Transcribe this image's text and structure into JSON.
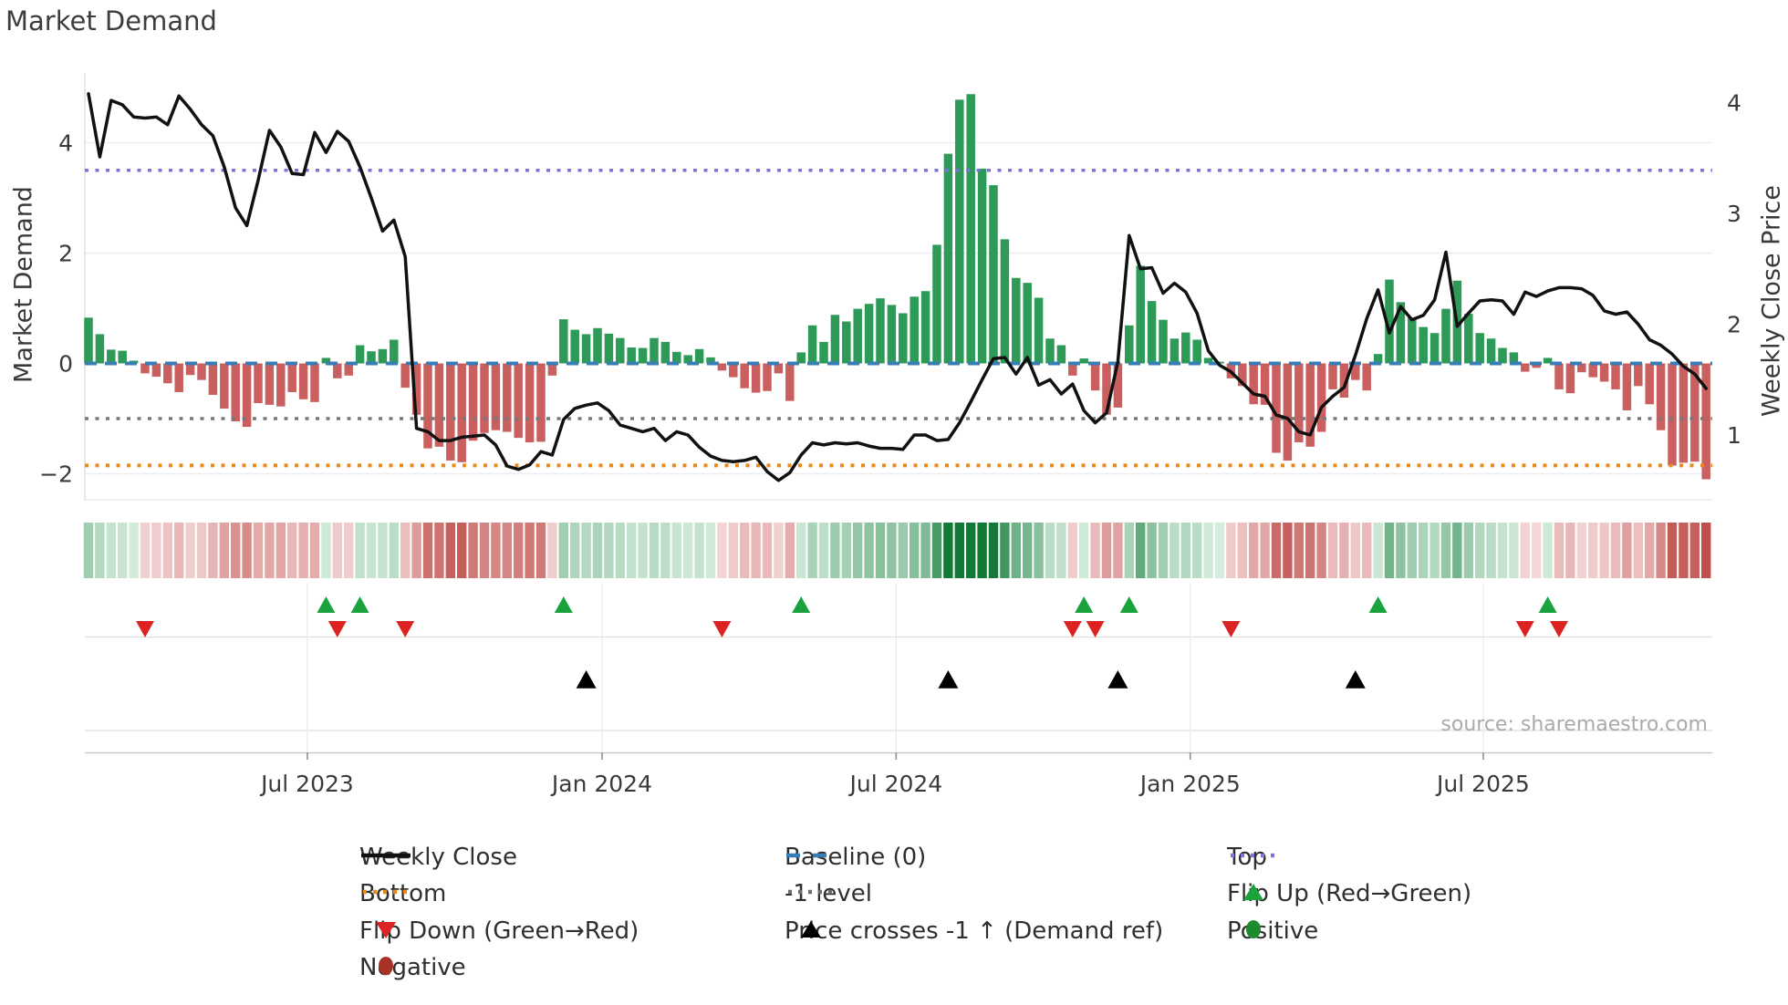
{
  "title": "Market Demand",
  "source_note": "source: sharemaestro.com",
  "axes": {
    "left_label": "Market Demand",
    "right_label": "Weekly Close Price",
    "left_ticks": [
      {
        "label": "4",
        "value": 4
      },
      {
        "label": "2",
        "value": 2
      },
      {
        "label": "0",
        "value": 0
      },
      {
        "label": "−2",
        "value": -2
      }
    ],
    "right_ticks": [
      {
        "label": "4",
        "value": 4
      },
      {
        "label": "3",
        "value": 3
      },
      {
        "label": "2",
        "value": 2
      },
      {
        "label": "1",
        "value": 1
      }
    ],
    "x_ticks": [
      {
        "label": "Jul 2023",
        "week": 19.35
      },
      {
        "label": "Jan 2024",
        "week": 45.4
      },
      {
        "label": "Jul 2024",
        "week": 71.4
      },
      {
        "label": "Jan 2025",
        "week": 97.4
      },
      {
        "label": "Jul 2025",
        "week": 123.3
      }
    ]
  },
  "reference_lines": {
    "baseline": {
      "label": "Baseline (0)",
      "value": 0,
      "color": "#377eb8"
    },
    "top": {
      "label": "Top",
      "value": 3.5,
      "color": "#7d73d8"
    },
    "minus1": {
      "label": "-1 level",
      "value": -1,
      "color": "#787878"
    },
    "bottom": {
      "label": "Bottom",
      "value": -1.85,
      "color": "#e8891a"
    }
  },
  "legend": {
    "items": [
      {
        "label": "Weekly Close",
        "swatch": "solid-line",
        "color": "#111111",
        "col": 0,
        "row": 0
      },
      {
        "label": "Baseline (0)",
        "swatch": "dashed-line",
        "color": "#377eb8",
        "col": 1,
        "row": 0
      },
      {
        "label": "Top",
        "swatch": "dotted-line",
        "color": "#7d73d8",
        "col": 2,
        "row": 0
      },
      {
        "label": "Bottom",
        "swatch": "dotted-line",
        "color": "#e8891a",
        "col": 0,
        "row": 1
      },
      {
        "label": "-1 level",
        "swatch": "dotted-line",
        "color": "#6e6e6e",
        "col": 1,
        "row": 1
      },
      {
        "label": "Flip Up (Red→Green)",
        "swatch": "triangle-up",
        "color": "#1aa23c",
        "col": 2,
        "row": 1
      },
      {
        "label": "Flip Down (Green→Red)",
        "swatch": "triangle-down",
        "color": "#dd2222",
        "col": 0,
        "row": 2
      },
      {
        "label": "Price crosses -1 ↑ (Demand ref)",
        "swatch": "triangle-up",
        "color": "#000000",
        "col": 1,
        "row": 2
      },
      {
        "label": "Positive",
        "swatch": "circle",
        "color": "#1e8a2e",
        "col": 2,
        "row": 2
      },
      {
        "label": "Negative",
        "swatch": "circle",
        "color": "#a93226",
        "col": 0,
        "row": 3
      }
    ]
  },
  "chart_data": {
    "type": "mixed-bar-line-heatmap",
    "x_unit": "week_index",
    "weeks": 144,
    "title": "Market Demand",
    "ylabel_left": "Market Demand",
    "ylabel_right": "Weekly Close Price",
    "ylim_left": [
      -2.3,
      5.3
    ],
    "ylim_right": [
      0.4,
      4.3
    ],
    "grid": "horizontal-pale",
    "legend_position": "bottom",
    "series": [
      {
        "name": "Market Demand (bars)",
        "axis": "left",
        "pos_color": "#2d9a57",
        "neg_color": "#c9605f"
      },
      {
        "name": "Weekly Close (line)",
        "axis": "right",
        "color": "#111111"
      },
      {
        "name": "Demand heatmap strip",
        "type": "heatmap",
        "scale": "red-negative to green-positive"
      }
    ],
    "demand": [
      0.83,
      0.53,
      0.25,
      0.23,
      0.05,
      -0.18,
      -0.24,
      -0.36,
      -0.52,
      -0.21,
      -0.3,
      -0.57,
      -0.82,
      -1.05,
      -1.15,
      -0.72,
      -0.75,
      -0.78,
      -0.52,
      -0.65,
      -0.7,
      0.1,
      -0.27,
      -0.22,
      0.33,
      0.22,
      0.26,
      0.43,
      -0.44,
      -0.93,
      -1.54,
      -1.51,
      -1.76,
      -1.79,
      -1.4,
      -1.26,
      -1.21,
      -1.24,
      -1.35,
      -1.43,
      -1.42,
      -0.22,
      0.8,
      0.61,
      0.53,
      0.64,
      0.54,
      0.46,
      0.29,
      0.28,
      0.46,
      0.39,
      0.21,
      0.15,
      0.26,
      0.11,
      -0.13,
      -0.25,
      -0.45,
      -0.53,
      -0.5,
      -0.18,
      -0.68,
      0.2,
      0.69,
      0.39,
      0.88,
      0.76,
      0.99,
      1.08,
      1.18,
      1.06,
      0.91,
      1.21,
      1.31,
      2.15,
      3.8,
      4.78,
      4.88,
      3.53,
      3.23,
      2.25,
      1.55,
      1.46,
      1.19,
      0.45,
      0.33,
      -0.22,
      0.09,
      -0.49,
      -0.93,
      -0.8,
      0.69,
      1.77,
      1.13,
      0.79,
      0.45,
      0.56,
      0.43,
      0.1,
      0.03,
      -0.27,
      -0.41,
      -0.74,
      -0.75,
      -1.62,
      -1.76,
      -1.43,
      -1.51,
      -1.24,
      -0.47,
      -0.62,
      -0.3,
      -0.49,
      0.17,
      1.52,
      1.11,
      0.83,
      0.66,
      0.55,
      0.99,
      1.5,
      0.9,
      0.55,
      0.45,
      0.28,
      0.2,
      -0.15,
      -0.08,
      0.1,
      -0.47,
      -0.54,
      -0.16,
      -0.25,
      -0.33,
      -0.47,
      -0.85,
      -0.41,
      -0.74,
      -1.21,
      -1.85,
      -1.8,
      -1.78,
      -2.1
    ],
    "price": [
      4.08,
      3.51,
      4.02,
      3.98,
      3.87,
      3.86,
      3.87,
      3.8,
      4.06,
      3.94,
      3.8,
      3.7,
      3.42,
      3.05,
      2.89,
      3.3,
      3.75,
      3.6,
      3.36,
      3.35,
      3.73,
      3.55,
      3.74,
      3.65,
      3.42,
      3.14,
      2.84,
      2.94,
      2.61,
      1.06,
      1.03,
      0.95,
      0.95,
      0.98,
      0.99,
      1.0,
      0.91,
      0.72,
      0.69,
      0.73,
      0.85,
      0.82,
      1.14,
      1.24,
      1.27,
      1.29,
      1.22,
      1.09,
      1.06,
      1.03,
      1.06,
      0.95,
      1.03,
      1.0,
      0.89,
      0.81,
      0.77,
      0.76,
      0.77,
      0.8,
      0.67,
      0.59,
      0.66,
      0.82,
      0.93,
      0.91,
      0.93,
      0.92,
      0.93,
      0.9,
      0.88,
      0.88,
      0.87,
      1.0,
      1.0,
      0.95,
      0.96,
      1.11,
      1.3,
      1.5,
      1.69,
      1.7,
      1.55,
      1.7,
      1.45,
      1.5,
      1.37,
      1.46,
      1.22,
      1.11,
      1.2,
      1.66,
      2.8,
      2.5,
      2.51,
      2.28,
      2.37,
      2.29,
      2.1,
      1.76,
      1.63,
      1.57,
      1.47,
      1.37,
      1.35,
      1.18,
      1.15,
      1.03,
      1.0,
      1.25,
      1.35,
      1.43,
      1.72,
      2.05,
      2.31,
      1.92,
      2.16,
      2.04,
      2.08,
      2.22,
      2.65,
      1.98,
      2.1,
      2.21,
      2.22,
      2.21,
      2.09,
      2.29,
      2.25,
      2.3,
      2.33,
      2.33,
      2.32,
      2.26,
      2.12,
      2.09,
      2.11,
      2.0,
      1.86,
      1.81,
      1.73,
      1.62,
      1.55,
      1.42
    ],
    "markers": {
      "flip_up_weeks": [
        21,
        24,
        42,
        63,
        88,
        92,
        114,
        129
      ],
      "flip_down_weeks": [
        5,
        22,
        28,
        56,
        87,
        89,
        101,
        127,
        130
      ],
      "price_cross_weeks": [
        44,
        76,
        91,
        112
      ]
    },
    "colors": {
      "bar_positive": "#2d9a57",
      "bar_negative": "#c9605f",
      "price_line": "#111111",
      "baseline": "#377eb8",
      "top_line": "#7d73d8",
      "bottom_line": "#e8891a",
      "minus1_line": "#787878",
      "flip_up": "#1aa23c",
      "flip_down": "#dd2222",
      "price_cross": "#000000",
      "heat_pos_dark": "#117a37",
      "heat_pos_pale": "#d6edde",
      "heat_neg_dark": "#c0504d",
      "heat_neg_pale": "#f6dddd"
    }
  }
}
